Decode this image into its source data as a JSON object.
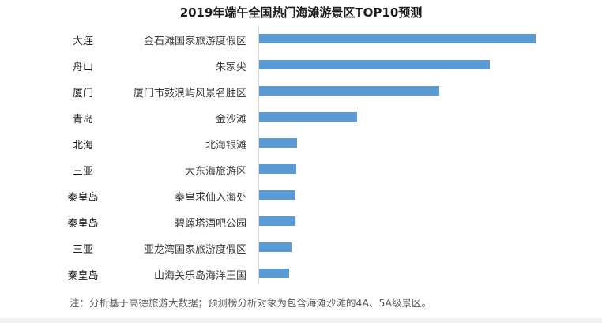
{
  "title": "2019年端午全国热门海滩游景区TOP10预测",
  "note": "注：分析基于高德旅游大数据；预测榜分析对象为包含海滩沙滩的4A、5A级景区。",
  "colors": {
    "bar": "#5b9bd5",
    "axis": "#d4d4d4"
  },
  "rows": [
    {
      "city": "大连",
      "spot": "金石滩国家旅游度假区",
      "value": 100
    },
    {
      "city": "舟山",
      "spot": "朱家尖",
      "value": 83.4
    },
    {
      "city": "厦门",
      "spot": "厦门市鼓浪屿风景名胜区",
      "value": 65.1
    },
    {
      "city": "青岛",
      "spot": "金沙滩",
      "value": 35.4
    },
    {
      "city": "北海",
      "spot": "北海银滩",
      "value": 13.7
    },
    {
      "city": "三亚",
      "spot": "大东海旅游区",
      "value": 13.4
    },
    {
      "city": "秦皇岛",
      "spot": "秦皇求仙入海处",
      "value": 13.1
    },
    {
      "city": "秦皇岛",
      "spot": "碧螺塔酒吧公园",
      "value": 13.1
    },
    {
      "city": "三亚",
      "spot": "亚龙湾国家旅游度假区",
      "value": 11.7
    },
    {
      "city": "秦皇岛",
      "spot": "山海关乐岛海洋王国",
      "value": 10.9
    }
  ],
  "chart_data": {
    "type": "bar",
    "orientation": "horizontal",
    "title": "2019年端午全国热门海滩游景区TOP10预测",
    "categories": [
      "金石滩国家旅游度假区",
      "朱家尖",
      "厦门市鼓浪屿风景名胜区",
      "金沙滩",
      "北海银滩",
      "大东海旅游区",
      "秦皇求仙入海处",
      "碧螺塔酒吧公园",
      "亚龙湾国家旅游度假区",
      "山海关乐岛海洋王国"
    ],
    "group_labels": [
      "大连",
      "舟山",
      "厦门",
      "青岛",
      "北海",
      "三亚",
      "秦皇岛",
      "秦皇岛",
      "三亚",
      "秦皇岛"
    ],
    "values": [
      100,
      83.4,
      65.1,
      35.4,
      13.7,
      13.4,
      13.1,
      13.1,
      11.7,
      10.9
    ],
    "value_note": "relative bar length (longest = 100); no value axis shown",
    "xlabel": "",
    "ylabel": "",
    "grid": false,
    "legend": null,
    "annotation": "注：分析基于高德旅游大数据；预测榜分析对象为包含海滩沙滩的4A、5A级景区。"
  }
}
